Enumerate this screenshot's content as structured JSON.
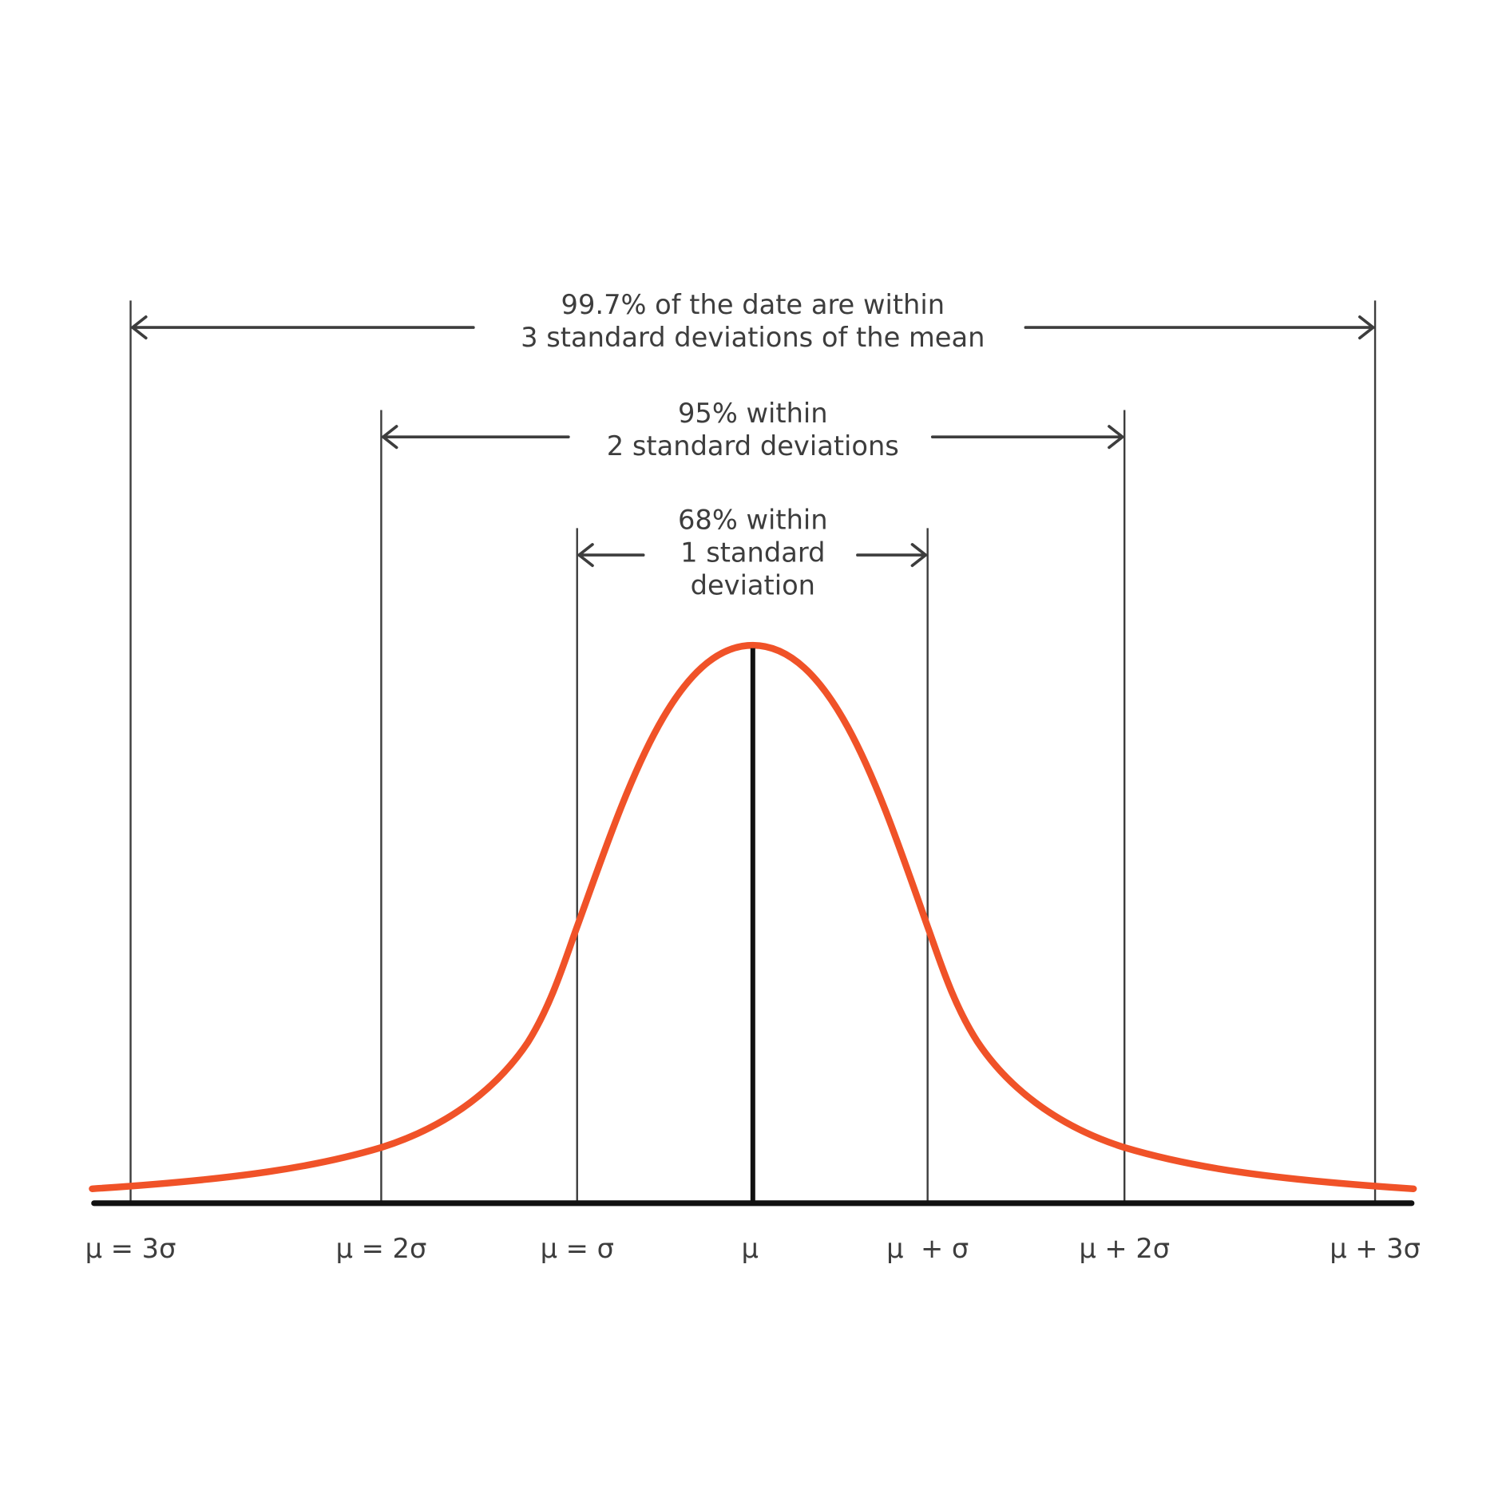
{
  "annotations": [
    {
      "lines": [
        "99.7% of the date are within",
        "3 standard deviations of the mean"
      ]
    },
    {
      "lines": [
        "95% within",
        "2 standard deviations"
      ]
    },
    {
      "lines": [
        "68% within",
        "1 standard",
        "deviation"
      ]
    }
  ],
  "axis_labels": [
    "μ = 3σ",
    "μ = 2σ",
    "μ = σ",
    "μ",
    "μ  + σ",
    "μ + 2σ",
    "μ + 3σ"
  ]
}
